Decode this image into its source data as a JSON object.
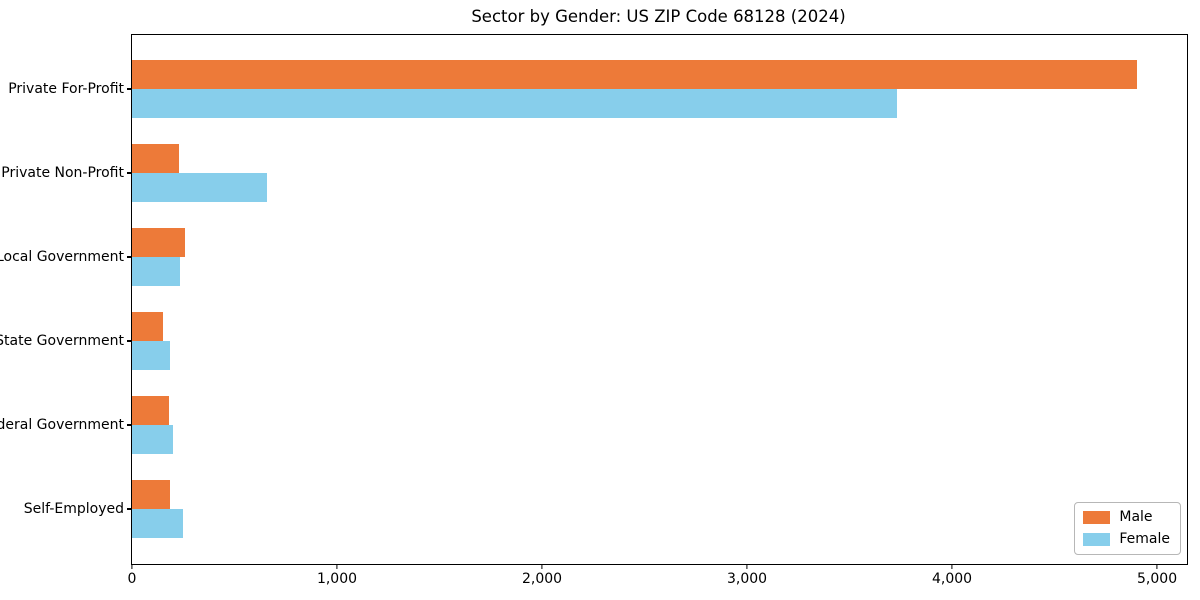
{
  "title": "Sector by Gender: US ZIP Code 68128 (2024)",
  "colors": {
    "male": "#ed7a39",
    "female": "#87ceeb",
    "spine": "#000000",
    "background": "#ffffff",
    "legend_border": "#b7b7b7"
  },
  "chart_data": {
    "type": "bar",
    "orientation": "horizontal",
    "title": "Sector by Gender: US ZIP Code 68128 (2024)",
    "categories": [
      "Private For-Profit",
      "Private Non-Profit",
      "Local Government",
      "State Government",
      "Federal Government",
      "Self-Employed"
    ],
    "series": [
      {
        "name": "Male",
        "color": "#ed7a39",
        "values": [
          4900,
          230,
          260,
          150,
          180,
          185
        ]
      },
      {
        "name": "Female",
        "color": "#87ceeb",
        "values": [
          3730,
          660,
          235,
          185,
          200,
          250
        ]
      }
    ],
    "xlabel": "",
    "ylabel": "",
    "xlim": [
      0,
      5146
    ],
    "xticks": [
      0,
      1000,
      2000,
      3000,
      4000,
      5000
    ],
    "xtick_labels": [
      "0",
      "1,000",
      "2,000",
      "3,000",
      "4,000",
      "5,000"
    ],
    "grid": false,
    "legend_position": "lower right",
    "legend_entries": [
      "Male",
      "Female"
    ]
  }
}
